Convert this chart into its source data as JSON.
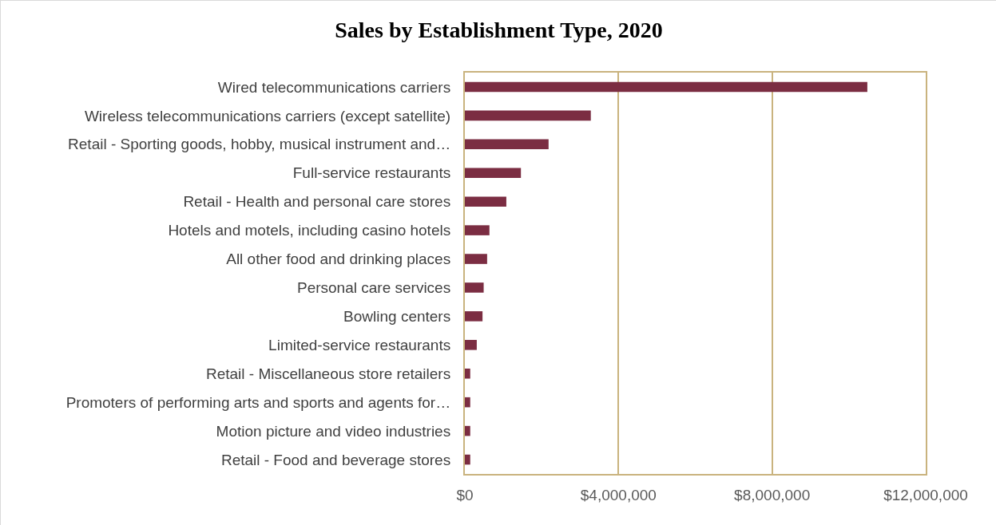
{
  "chart_data": {
    "type": "bar",
    "orientation": "horizontal",
    "title": "Sales by Establishment Type, 2020",
    "categories": [
      "Wired telecommunications carriers",
      "Wireless telecommunications carriers (except satellite)",
      "Retail - Sporting goods, hobby, musical instrument and…",
      "Full-service restaurants",
      "Retail - Health and personal care stores",
      "Hotels and motels, including casino hotels",
      "All other food and drinking places",
      "Personal care services",
      "Bowling centers",
      "Limited-service restaurants",
      "Retail - Miscellaneous store retailers",
      "Promoters of performing arts and sports and agents for…",
      "Motion picture and video industries",
      "Retail - Food and beverage stores"
    ],
    "values": [
      10480000,
      3280000,
      2180000,
      1460000,
      1080000,
      640000,
      580000,
      490000,
      460000,
      310000,
      140000,
      140000,
      140000,
      140000
    ],
    "color": "#7b2d42",
    "xlim": [
      0,
      12000000
    ],
    "xticks": [
      {
        "value": 0,
        "label": "$0"
      },
      {
        "value": 4000000,
        "label": "$4,000,000"
      },
      {
        "value": 8000000,
        "label": "$8,000,000"
      },
      {
        "value": 12000000,
        "label": "$12,000,000"
      }
    ],
    "grid": "x"
  }
}
